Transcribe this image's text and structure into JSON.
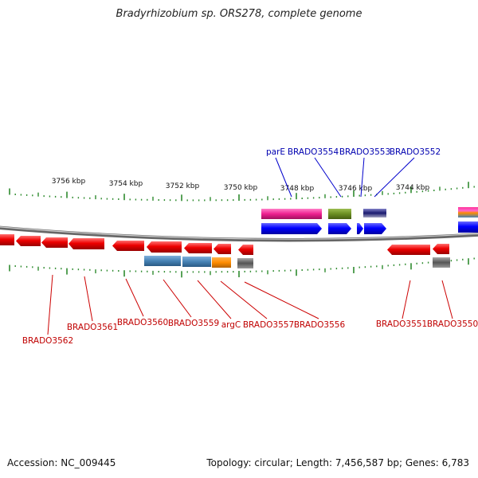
{
  "title": "Bradyrhizobium sp. ORS278, complete genome",
  "footer": {
    "accession": "Accession: NC_009445",
    "topology": "Topology: circular; Length: 7,456,587 bp; Genes: 6,783"
  },
  "scale_labels": [
    "3756 kbp",
    "3754 kbp",
    "3752 kbp",
    "3750 kbp",
    "3748 kbp",
    "3746 kbp",
    "3744 kbp"
  ],
  "top_gene_labels": [
    "parE",
    "BRADO3554",
    "BRADO3553",
    "BRADO3552"
  ],
  "bottom_gene_labels": [
    "BRADO3562",
    "BRADO3561",
    "BRADO3560",
    "BRADO3559",
    "argC",
    "BRADO3557",
    "BRADO3556",
    "BRADO3551",
    "BRADO3550"
  ],
  "colors": {
    "forward_gene": "#0000ff",
    "reverse_gene": "#ff0000",
    "backbone": "#888888",
    "tick": "#2e8b2e",
    "label_top": "#0000b0",
    "label_bottom": "#c00000"
  }
}
